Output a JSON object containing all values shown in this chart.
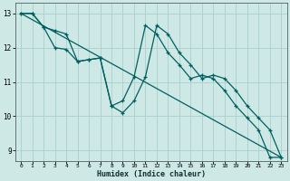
{
  "xlabel": "Humidex (Indice chaleur)",
  "bg_color": "#cde8e5",
  "grid_color": "#aacfcc",
  "line_color": "#006060",
  "xlim": [
    -0.5,
    23.5
  ],
  "ylim": [
    8.7,
    13.3
  ],
  "yticks": [
    9,
    10,
    11,
    12,
    13
  ],
  "xticks": [
    0,
    1,
    2,
    3,
    4,
    5,
    6,
    7,
    8,
    9,
    10,
    11,
    12,
    13,
    14,
    15,
    16,
    17,
    18,
    19,
    20,
    21,
    22,
    23
  ],
  "series1_x": [
    0,
    1,
    2,
    3,
    4,
    5,
    6,
    7,
    8,
    9,
    10,
    11,
    12,
    13,
    14,
    15,
    16,
    17,
    18,
    19,
    20,
    21,
    22,
    23
  ],
  "series1_y": [
    13.0,
    13.0,
    12.6,
    12.5,
    12.4,
    11.6,
    11.65,
    11.7,
    10.3,
    10.45,
    11.15,
    12.65,
    12.4,
    11.85,
    11.5,
    11.1,
    11.2,
    11.1,
    10.75,
    10.3,
    9.95,
    9.6,
    8.8,
    8.8
  ],
  "series2_x": [
    0,
    1,
    2,
    3,
    4,
    5,
    6,
    7,
    8,
    9,
    10,
    11,
    12,
    13,
    14,
    15,
    16,
    17,
    18,
    19,
    20,
    21,
    22,
    23
  ],
  "series2_y": [
    13.0,
    13.0,
    12.6,
    12.0,
    11.95,
    11.6,
    11.65,
    11.7,
    10.3,
    10.1,
    10.45,
    11.15,
    12.65,
    12.4,
    11.85,
    11.5,
    11.1,
    11.2,
    11.1,
    10.75,
    10.3,
    9.95,
    9.6,
    8.8
  ],
  "series3_x": [
    0,
    23
  ],
  "series3_y": [
    13.0,
    8.8
  ]
}
